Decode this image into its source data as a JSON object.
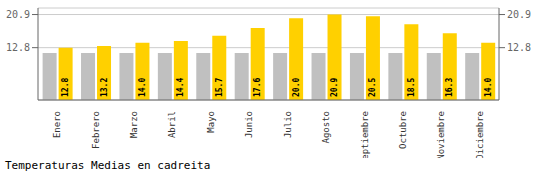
{
  "chart_data": {
    "type": "bar",
    "title": "Temperaturas Medias en cadreita",
    "categories": [
      "Enero",
      "Febrero",
      "Marzo",
      "Abril",
      "Mayo",
      "Junio",
      "Julio",
      "Agosto",
      "Septiembre",
      "Octubre",
      "Noviembre",
      "Diciembre"
    ],
    "series": [
      {
        "color": "#C0C0C0",
        "values": [
          11.5,
          11.5,
          11.5,
          11.5,
          11.5,
          11.5,
          11.5,
          11.5,
          11.5,
          11.5,
          11.5,
          11.5
        ]
      },
      {
        "color": "#FFD000",
        "values": [
          12.8,
          13.2,
          14.0,
          14.4,
          15.7,
          17.6,
          20.0,
          20.9,
          20.5,
          18.5,
          16.3,
          14.0
        ],
        "data_labels": true,
        "value_labels": [
          "12.8",
          "13.2",
          "14.0",
          "14.4",
          "15.7",
          "17.6",
          "20.0",
          "20.9",
          "20.5",
          "18.5",
          "16.3",
          "14.0"
        ]
      }
    ],
    "ylim": [
      0,
      22.5
    ],
    "yticks": [
      12.8,
      20.9
    ],
    "y2lim": [
      0,
      22.5
    ],
    "y2ticks": [
      12.8,
      20.9
    ],
    "grid": true
  }
}
